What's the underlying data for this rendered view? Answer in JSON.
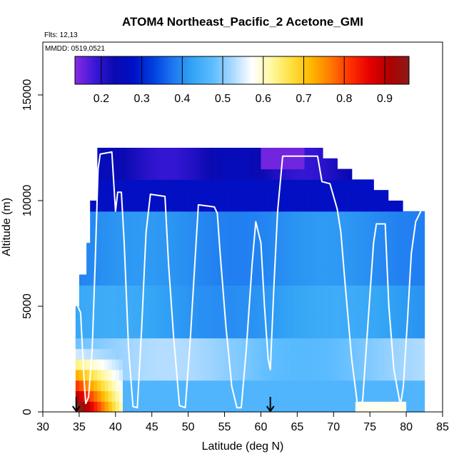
{
  "chart_data": {
    "type": "heatmap",
    "title": "ATOM4 Northeast_Pacific_2 Acetone_GMI",
    "flights_note": "Flts: 12,13",
    "date_note": "MMDD: 0519,0521",
    "xlabel": "Latitude (deg N)",
    "ylabel": "Altitude (m)",
    "xlim": [
      30,
      85
    ],
    "ylim": [
      0,
      17500
    ],
    "x_ticks": [
      "30",
      "35",
      "40",
      "45",
      "50",
      "55",
      "60",
      "65",
      "70",
      "75",
      "80",
      "85"
    ],
    "x_tick_values": [
      30,
      35,
      40,
      45,
      50,
      55,
      60,
      65,
      70,
      75,
      80,
      85
    ],
    "y_ticks": [
      "0",
      "5000",
      "10000",
      "15000"
    ],
    "y_tick_values": [
      0,
      5000,
      10000,
      15000
    ],
    "grid": false,
    "colorbar": {
      "range": [
        0.135,
        0.96
      ],
      "ticks": [
        "0.2",
        "0.3",
        "0.4",
        "0.5",
        "0.6",
        "0.7",
        "0.8",
        "0.9"
      ],
      "tick_values": [
        0.2,
        0.3,
        0.4,
        0.5,
        0.6,
        0.7,
        0.8,
        0.9
      ],
      "colors": [
        "#8a2be2",
        "#3a18d8",
        "#0a0ab0",
        "#0010c8",
        "#0040e0",
        "#1e78f0",
        "#33a5f5",
        "#5cbcff",
        "#a8d8ff",
        "#ffffff",
        "#fff8a0",
        "#ffe040",
        "#ffb800",
        "#ff7a00",
        "#ff3000",
        "#e60000",
        "#b00000",
        "#8b1a1a"
      ]
    },
    "altitude_bins": [
      0,
      500,
      1000,
      1500,
      2000,
      2500,
      3000,
      3500,
      4000,
      4500,
      5000,
      5500,
      6000,
      6500,
      7000,
      7500,
      8000,
      8500,
      9000,
      9500,
      10000,
      10500,
      11000,
      11500,
      12000,
      12500
    ],
    "lat_bins": [
      34.5,
      35,
      35.5,
      36,
      36.5,
      37,
      37.5,
      38,
      38.5,
      39,
      39.5,
      40,
      40.5,
      41,
      41.5,
      42,
      42.5,
      43,
      43.5,
      44,
      44.5,
      45,
      45.5,
      46,
      46.5,
      47,
      47.5,
      48,
      48.5,
      49,
      49.5,
      50,
      50.5,
      51,
      51.5,
      52,
      52.5,
      53,
      53.5,
      54,
      54.5,
      55,
      55.5,
      56,
      56.5,
      57,
      57.5,
      58,
      58.5,
      59,
      59.5,
      60,
      60.5,
      61,
      61.5,
      62,
      62.5,
      63,
      63.5,
      64,
      64.5,
      65,
      65.5,
      66,
      66.5,
      67,
      67.5,
      68,
      68.5,
      69,
      69.5,
      70,
      70.5,
      71,
      71.5,
      72,
      72.5,
      73,
      73.5,
      74,
      74.5,
      75,
      75.5,
      76,
      76.5,
      77,
      77.5,
      78,
      78.5,
      79,
      79.5,
      80,
      80.5,
      81,
      81.5,
      82,
      82.5
    ],
    "flight_track": [
      {
        "lat": 34.8,
        "alt": 5000
      },
      {
        "lat": 35.2,
        "alt": 4700
      },
      {
        "lat": 35.6,
        "alt": 2000
      },
      {
        "lat": 35.9,
        "alt": 400
      },
      {
        "lat": 36.3,
        "alt": 700
      },
      {
        "lat": 36.8,
        "alt": 3000
      },
      {
        "lat": 37.2,
        "alt": 7000
      },
      {
        "lat": 37.6,
        "alt": 11500
      },
      {
        "lat": 37.9,
        "alt": 12200
      },
      {
        "lat": 39.5,
        "alt": 12300
      },
      {
        "lat": 40.0,
        "alt": 9500
      },
      {
        "lat": 40.3,
        "alt": 10400
      },
      {
        "lat": 40.8,
        "alt": 10400
      },
      {
        "lat": 41.2,
        "alt": 8000
      },
      {
        "lat": 41.8,
        "alt": 3000
      },
      {
        "lat": 42.4,
        "alt": 250
      },
      {
        "lat": 43.0,
        "alt": 200
      },
      {
        "lat": 43.6,
        "alt": 4000
      },
      {
        "lat": 44.2,
        "alt": 8500
      },
      {
        "lat": 44.8,
        "alt": 10300
      },
      {
        "lat": 46.8,
        "alt": 10200
      },
      {
        "lat": 47.3,
        "alt": 7000
      },
      {
        "lat": 48.0,
        "alt": 3500
      },
      {
        "lat": 48.8,
        "alt": 300
      },
      {
        "lat": 49.6,
        "alt": 200
      },
      {
        "lat": 50.3,
        "alt": 3500
      },
      {
        "lat": 51.0,
        "alt": 7500
      },
      {
        "lat": 51.4,
        "alt": 9800
      },
      {
        "lat": 53.6,
        "alt": 9700
      },
      {
        "lat": 54.0,
        "alt": 9400
      },
      {
        "lat": 54.4,
        "alt": 7500
      },
      {
        "lat": 55.2,
        "alt": 4000
      },
      {
        "lat": 56.0,
        "alt": 1200
      },
      {
        "lat": 56.7,
        "alt": 200
      },
      {
        "lat": 57.3,
        "alt": 200
      },
      {
        "lat": 58.0,
        "alt": 3000
      },
      {
        "lat": 58.8,
        "alt": 7000
      },
      {
        "lat": 59.3,
        "alt": 9000
      },
      {
        "lat": 60.0,
        "alt": 8000
      },
      {
        "lat": 60.5,
        "alt": 5000
      },
      {
        "lat": 61.0,
        "alt": 2500
      },
      {
        "lat": 61.3,
        "alt": 2000
      },
      {
        "lat": 61.8,
        "alt": 6000
      },
      {
        "lat": 62.3,
        "alt": 9500
      },
      {
        "lat": 63.0,
        "alt": 12100
      },
      {
        "lat": 67.8,
        "alt": 12100
      },
      {
        "lat": 68.4,
        "alt": 10900
      },
      {
        "lat": 69.5,
        "alt": 10800
      },
      {
        "lat": 70.5,
        "alt": 9600
      },
      {
        "lat": 71.0,
        "alt": 8500
      },
      {
        "lat": 71.6,
        "alt": 6000
      },
      {
        "lat": 72.5,
        "alt": 2500
      },
      {
        "lat": 73.3,
        "alt": 300
      },
      {
        "lat": 74.0,
        "alt": 500
      },
      {
        "lat": 74.8,
        "alt": 4500
      },
      {
        "lat": 75.5,
        "alt": 8000
      },
      {
        "lat": 75.9,
        "alt": 8900
      },
      {
        "lat": 77.1,
        "alt": 8900
      },
      {
        "lat": 77.6,
        "alt": 5000
      },
      {
        "lat": 78.3,
        "alt": 2000
      },
      {
        "lat": 79.2,
        "alt": 300
      },
      {
        "lat": 79.6,
        "alt": 1200
      },
      {
        "lat": 80.2,
        "alt": 4500
      },
      {
        "lat": 80.7,
        "alt": 7500
      },
      {
        "lat": 81.3,
        "alt": 9000
      },
      {
        "lat": 82.0,
        "alt": 9500
      }
    ],
    "markers": [
      {
        "type": "arrow",
        "lat": 34.6,
        "alt": 0
      },
      {
        "type": "arrow",
        "lat": 61.3,
        "alt": 0
      }
    ]
  }
}
